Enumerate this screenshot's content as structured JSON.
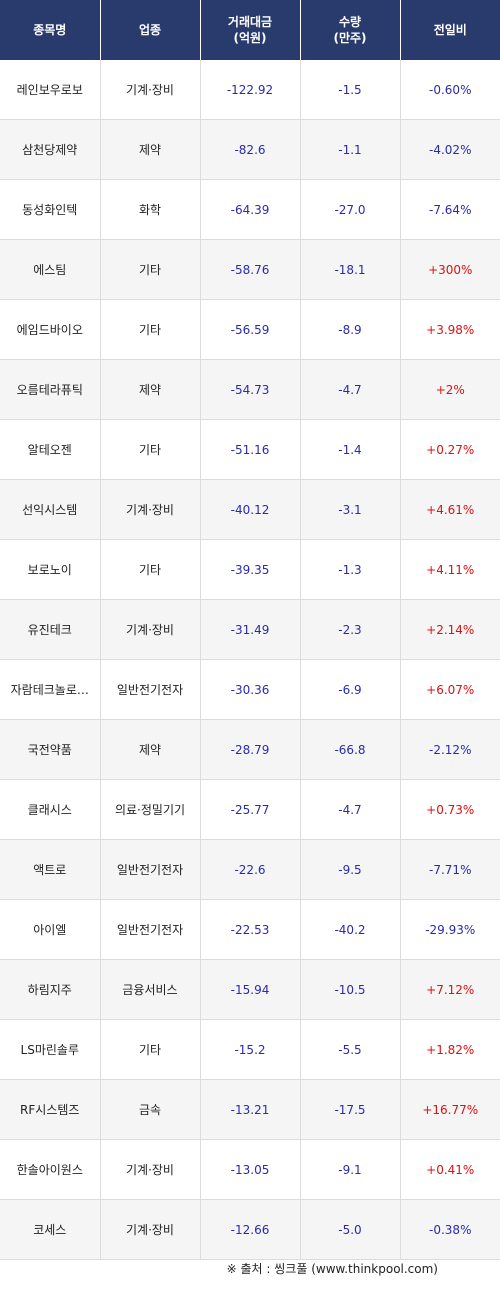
{
  "header": {
    "name": "종목명",
    "sector": "업종",
    "amount_line1": "거래대금",
    "amount_line2": "(억원)",
    "volume_line1": "수량",
    "volume_line2": "(만주)",
    "change": "전일비"
  },
  "rows": [
    {
      "name": "레인보우로보",
      "sector": "기계·장비",
      "amount": "-122.92",
      "volume": "-1.5",
      "change": "-0.60%",
      "dir": "neg"
    },
    {
      "name": "삼천당제약",
      "sector": "제약",
      "amount": "-82.6",
      "volume": "-1.1",
      "change": "-4.02%",
      "dir": "neg"
    },
    {
      "name": "동성화인텍",
      "sector": "화학",
      "amount": "-64.39",
      "volume": "-27.0",
      "change": "-7.64%",
      "dir": "neg"
    },
    {
      "name": "에스팀",
      "sector": "기타",
      "amount": "-58.76",
      "volume": "-18.1",
      "change": "+300%",
      "dir": "pos"
    },
    {
      "name": "에임드바이오",
      "sector": "기타",
      "amount": "-56.59",
      "volume": "-8.9",
      "change": "+3.98%",
      "dir": "pos"
    },
    {
      "name": "오름테라퓨틱",
      "sector": "제약",
      "amount": "-54.73",
      "volume": "-4.7",
      "change": "+2%",
      "dir": "pos"
    },
    {
      "name": "알테오젠",
      "sector": "기타",
      "amount": "-51.16",
      "volume": "-1.4",
      "change": "+0.27%",
      "dir": "pos"
    },
    {
      "name": "선익시스템",
      "sector": "기계·장비",
      "amount": "-40.12",
      "volume": "-3.1",
      "change": "+4.61%",
      "dir": "pos"
    },
    {
      "name": "보로노이",
      "sector": "기타",
      "amount": "-39.35",
      "volume": "-1.3",
      "change": "+4.11%",
      "dir": "pos"
    },
    {
      "name": "유진테크",
      "sector": "기계·장비",
      "amount": "-31.49",
      "volume": "-2.3",
      "change": "+2.14%",
      "dir": "pos"
    },
    {
      "name": "자람테크놀로…",
      "sector": "일반전기전자",
      "amount": "-30.36",
      "volume": "-6.9",
      "change": "+6.07%",
      "dir": "pos"
    },
    {
      "name": "국전약품",
      "sector": "제약",
      "amount": "-28.79",
      "volume": "-66.8",
      "change": "-2.12%",
      "dir": "neg"
    },
    {
      "name": "클래시스",
      "sector": "의료·정밀기기",
      "amount": "-25.77",
      "volume": "-4.7",
      "change": "+0.73%",
      "dir": "pos"
    },
    {
      "name": "액트로",
      "sector": "일반전기전자",
      "amount": "-22.6",
      "volume": "-9.5",
      "change": "-7.71%",
      "dir": "neg"
    },
    {
      "name": "아이엘",
      "sector": "일반전기전자",
      "amount": "-22.53",
      "volume": "-40.2",
      "change": "-29.93%",
      "dir": "neg"
    },
    {
      "name": "하림지주",
      "sector": "금융서비스",
      "amount": "-15.94",
      "volume": "-10.5",
      "change": "+7.12%",
      "dir": "pos"
    },
    {
      "name": "LS마린솔루",
      "sector": "기타",
      "amount": "-15.2",
      "volume": "-5.5",
      "change": "+1.82%",
      "dir": "pos"
    },
    {
      "name": "RF시스템즈",
      "sector": "금속",
      "amount": "-13.21",
      "volume": "-17.5",
      "change": "+16.77%",
      "dir": "pos"
    },
    {
      "name": "한솔아이원스",
      "sector": "기계·장비",
      "amount": "-13.05",
      "volume": "-9.1",
      "change": "+0.41%",
      "dir": "pos"
    },
    {
      "name": "코세스",
      "sector": "기계·장비",
      "amount": "-12.66",
      "volume": "-5.0",
      "change": "-0.38%",
      "dir": "neg"
    }
  ],
  "source": "※ 출처 : 씽크풀 (www.thinkpool.com)",
  "colors": {
    "header_bg": "#293a6d",
    "negative": "#2a2ab0",
    "positive": "#dd1111"
  }
}
